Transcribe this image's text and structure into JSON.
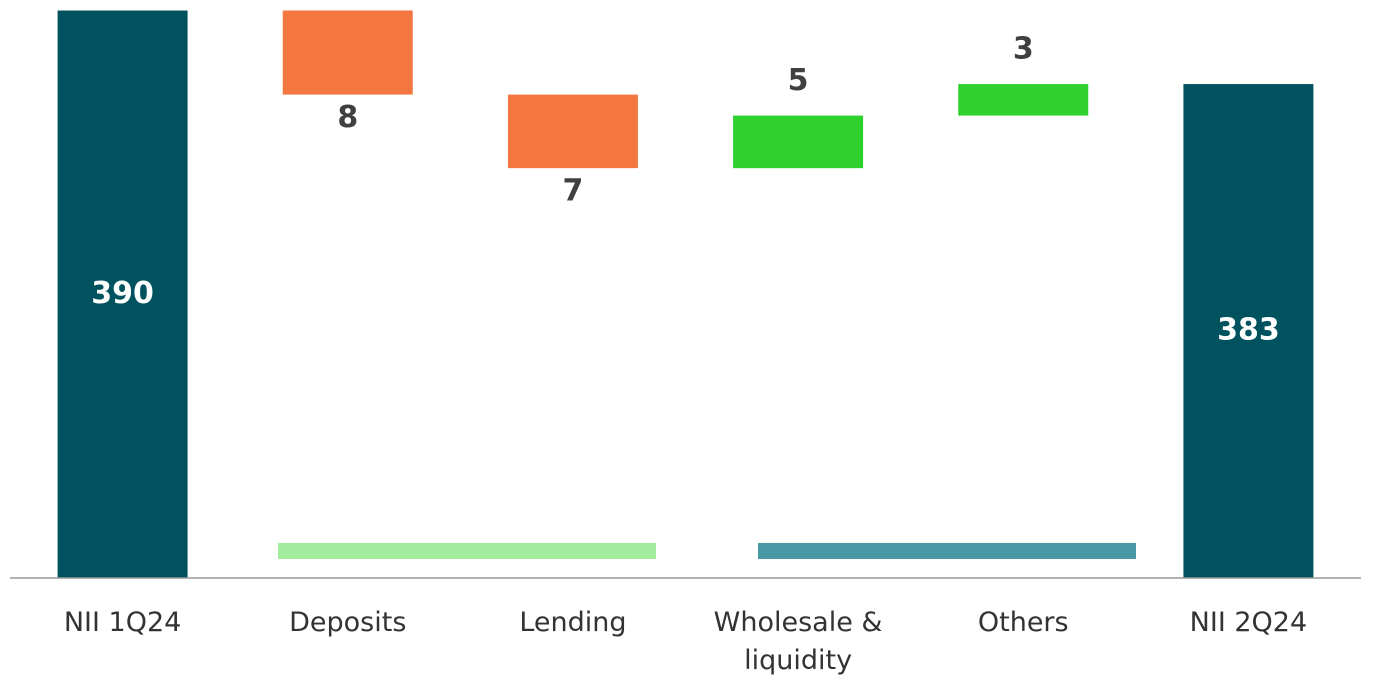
{
  "chart_data": {
    "type": "waterfall",
    "categories": [
      "NII 1Q24",
      "Deposits",
      "Lending",
      "Wholesale & liquidity",
      "Others",
      "NII 2Q24"
    ],
    "values": [
      390,
      -8,
      -7,
      5,
      3,
      383
    ],
    "value_labels": [
      "390",
      "8",
      "7",
      "5",
      "3",
      "383"
    ],
    "measure": [
      "total",
      "relative",
      "relative",
      "relative",
      "relative",
      "total"
    ],
    "colors": {
      "total": "#00525f",
      "decrease": "#f47641",
      "increase": "#2ed12e"
    },
    "ylim": [
      336,
      391
    ]
  }
}
